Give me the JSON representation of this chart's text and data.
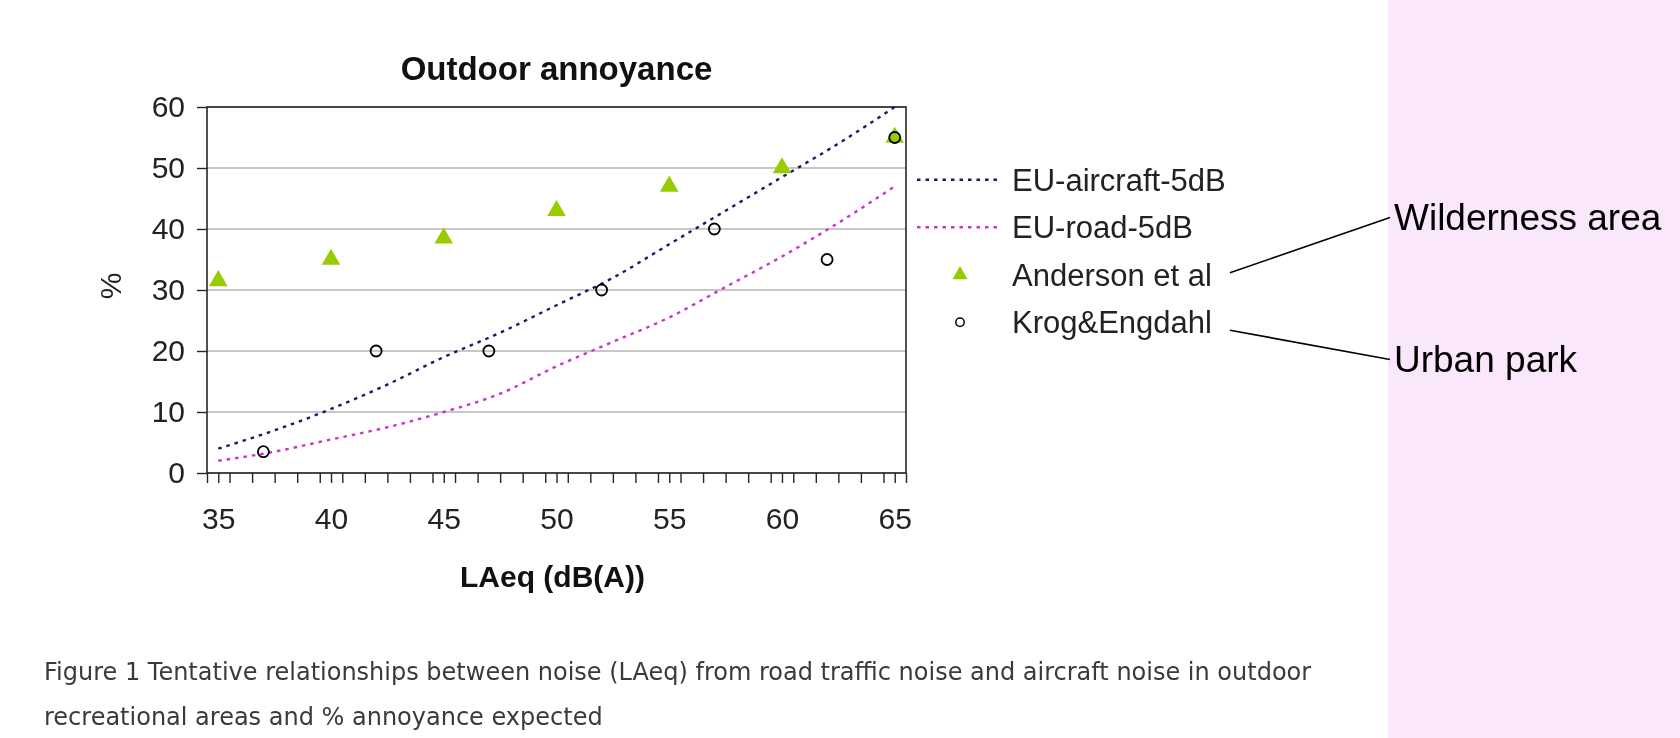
{
  "chart_data": {
    "type": "line",
    "title": "Outdoor annoyance",
    "xlabel": "LAeq (dB(A))",
    "ylabel": "%",
    "xlim": [
      34.5,
      65.5
    ],
    "xticks": [
      {
        "value": 34.5,
        "label": null
      },
      35,
      {
        "value": 35.5,
        "label": null
      },
      {
        "value": 36.5,
        "label": null
      },
      {
        "value": 37.5,
        "label": null
      },
      {
        "value": 38.5,
        "label": null
      },
      {
        "value": 39.5,
        "label": null
      },
      40,
      {
        "value": 40.5,
        "label": null
      },
      {
        "value": 41.5,
        "label": null
      },
      {
        "value": 42.5,
        "label": null
      },
      {
        "value": 43.5,
        "label": null
      },
      {
        "value": 44.5,
        "label": null
      },
      45,
      {
        "value": 45.5,
        "label": null
      },
      {
        "value": 46.5,
        "label": null
      },
      {
        "value": 47.5,
        "label": null
      },
      {
        "value": 48.5,
        "label": null
      },
      {
        "value": 49.5,
        "label": null
      },
      50,
      {
        "value": 50.5,
        "label": null
      },
      {
        "value": 51.5,
        "label": null
      },
      {
        "value": 52.5,
        "label": null
      },
      {
        "value": 53.5,
        "label": null
      },
      {
        "value": 54.5,
        "label": null
      },
      55,
      {
        "value": 55.5,
        "label": null
      },
      {
        "value": 56.5,
        "label": null
      },
      {
        "value": 57.5,
        "label": null
      },
      {
        "value": 58.5,
        "label": null
      },
      {
        "value": 59.5,
        "label": null
      },
      60,
      {
        "value": 60.5,
        "label": null
      },
      {
        "value": 61.5,
        "label": null
      },
      {
        "value": 62.5,
        "label": null
      },
      {
        "value": 63.5,
        "label": null
      },
      {
        "value": 64.5,
        "label": null
      },
      65,
      {
        "value": 65.5,
        "label": null
      }
    ],
    "ylim": [
      0,
      60
    ],
    "yticks": [
      0,
      10,
      20,
      30,
      40,
      50,
      60
    ],
    "grid": "y",
    "legend": "right",
    "series": [
      {
        "name": "EU-aircraft-5dB",
        "color": "#1a1a66",
        "line_style": "dotted",
        "x": [
          35,
          37.5,
          40,
          42.5,
          45,
          47.5,
          50,
          52.5,
          55,
          57.5,
          60,
          62.5,
          65
        ],
        "values": [
          4,
          7,
          10.5,
          14.5,
          19,
          23,
          27.5,
          32,
          37.5,
          43,
          48.5,
          54,
          60
        ]
      },
      {
        "name": "EU-road-5dB",
        "color": "#cc33cc",
        "line_style": "dotted",
        "x": [
          35,
          37.5,
          40,
          42.5,
          45,
          47.5,
          50,
          52.5,
          55,
          57.5,
          60,
          62.5,
          65
        ],
        "values": [
          2,
          3.5,
          5.5,
          7.5,
          10,
          13,
          17.5,
          21.5,
          25.5,
          30.5,
          35.5,
          41,
          47
        ]
      },
      {
        "name": "Anderson et al",
        "type": "scatter",
        "marker": "triangle",
        "color": "#99cc00",
        "x": [
          35,
          40,
          45,
          50,
          55,
          60,
          65
        ],
        "values": [
          31.5,
          35,
          38.5,
          43,
          47,
          50,
          55
        ]
      },
      {
        "name": "Krog&Engdahl",
        "type": "scatter",
        "marker": "circle",
        "color": "#000000",
        "x": [
          37,
          42,
          47,
          52,
          57,
          62,
          65
        ],
        "values": [
          3.5,
          20,
          20,
          30,
          40,
          35,
          55
        ]
      }
    ],
    "annotations": [
      "Wilderness area",
      "Urban park",
      "Figure 1 Tentative relationships between noise (LAeq) from road traffic noise and aircraft noise in outdoor recreational areas and % annoyance expected"
    ]
  }
}
